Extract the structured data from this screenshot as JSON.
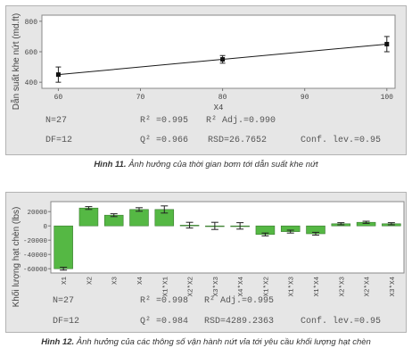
{
  "figure1": {
    "caption_label": "Hình 11.",
    "caption_text": "Ảnh hưởng của thời gian bơm tới dẫn suất khe nứt",
    "stats": {
      "n": "N=27",
      "r2": "R² =0.995",
      "r2adj": "R² Adj.=0.990",
      "df": "DF=12",
      "q2": "Q² =0.966",
      "rsd": "RSD=26.7652",
      "conf": "Conf. lev.=0.95"
    }
  },
  "figure2": {
    "caption_label": "Hình 12.",
    "caption_text": "Ảnh hưởng của các thông số vận hành nứt vỉa tới yêu cầu khối lượng hạt chèn",
    "stats": {
      "n": "N=27",
      "r2": "R² =0.998",
      "r2adj": "R² Adj.=0.995",
      "df": "DF=12",
      "q2": "Q² =0.984",
      "rsd": "RSD=4289.2363",
      "conf": "Conf. lev.=0.95"
    }
  },
  "chart_data": [
    {
      "type": "line",
      "title": "",
      "xlabel": "X4",
      "ylabel": "Dẫn suất khe nứt (md.ft)",
      "x": [
        60,
        80,
        100
      ],
      "values": [
        450,
        550,
        650
      ],
      "errors": [
        50,
        25,
        50
      ],
      "xticks": [
        60,
        70,
        80,
        90,
        100
      ],
      "yticks": [
        400,
        600,
        800
      ],
      "xlim": [
        58,
        101
      ],
      "ylim": [
        360,
        840
      ],
      "grid": false,
      "series_color": "#1a1a1a"
    },
    {
      "type": "bar",
      "title": "",
      "xlabel": "",
      "ylabel": "Khối lượng hạt chèn (lbs)",
      "categories": [
        "X1",
        "X2",
        "X3",
        "X4",
        "X1*X1",
        "X2*X2",
        "X3*X3",
        "X4*X4",
        "X1*X2",
        "X1*X3",
        "X1*X4",
        "X2*X3",
        "X2*X4",
        "X3*X4"
      ],
      "values": [
        -60000,
        25000,
        15000,
        23000,
        23000,
        1000,
        0,
        0,
        -12000,
        -8000,
        -11000,
        3000,
        5000,
        3000
      ],
      "errors": [
        2000,
        2000,
        2000,
        2500,
        5000,
        4000,
        5000,
        4500,
        2000,
        2000,
        2000,
        1500,
        1500,
        1500
      ],
      "yticks": [
        20000,
        0,
        -20000,
        -40000,
        -60000
      ],
      "ytick_labels": [
        "20000",
        "0",
        "-20000",
        "-40000",
        "-60000"
      ],
      "ylim": [
        -66000,
        34000
      ],
      "grid": false,
      "bar_color": "#55b844"
    }
  ]
}
